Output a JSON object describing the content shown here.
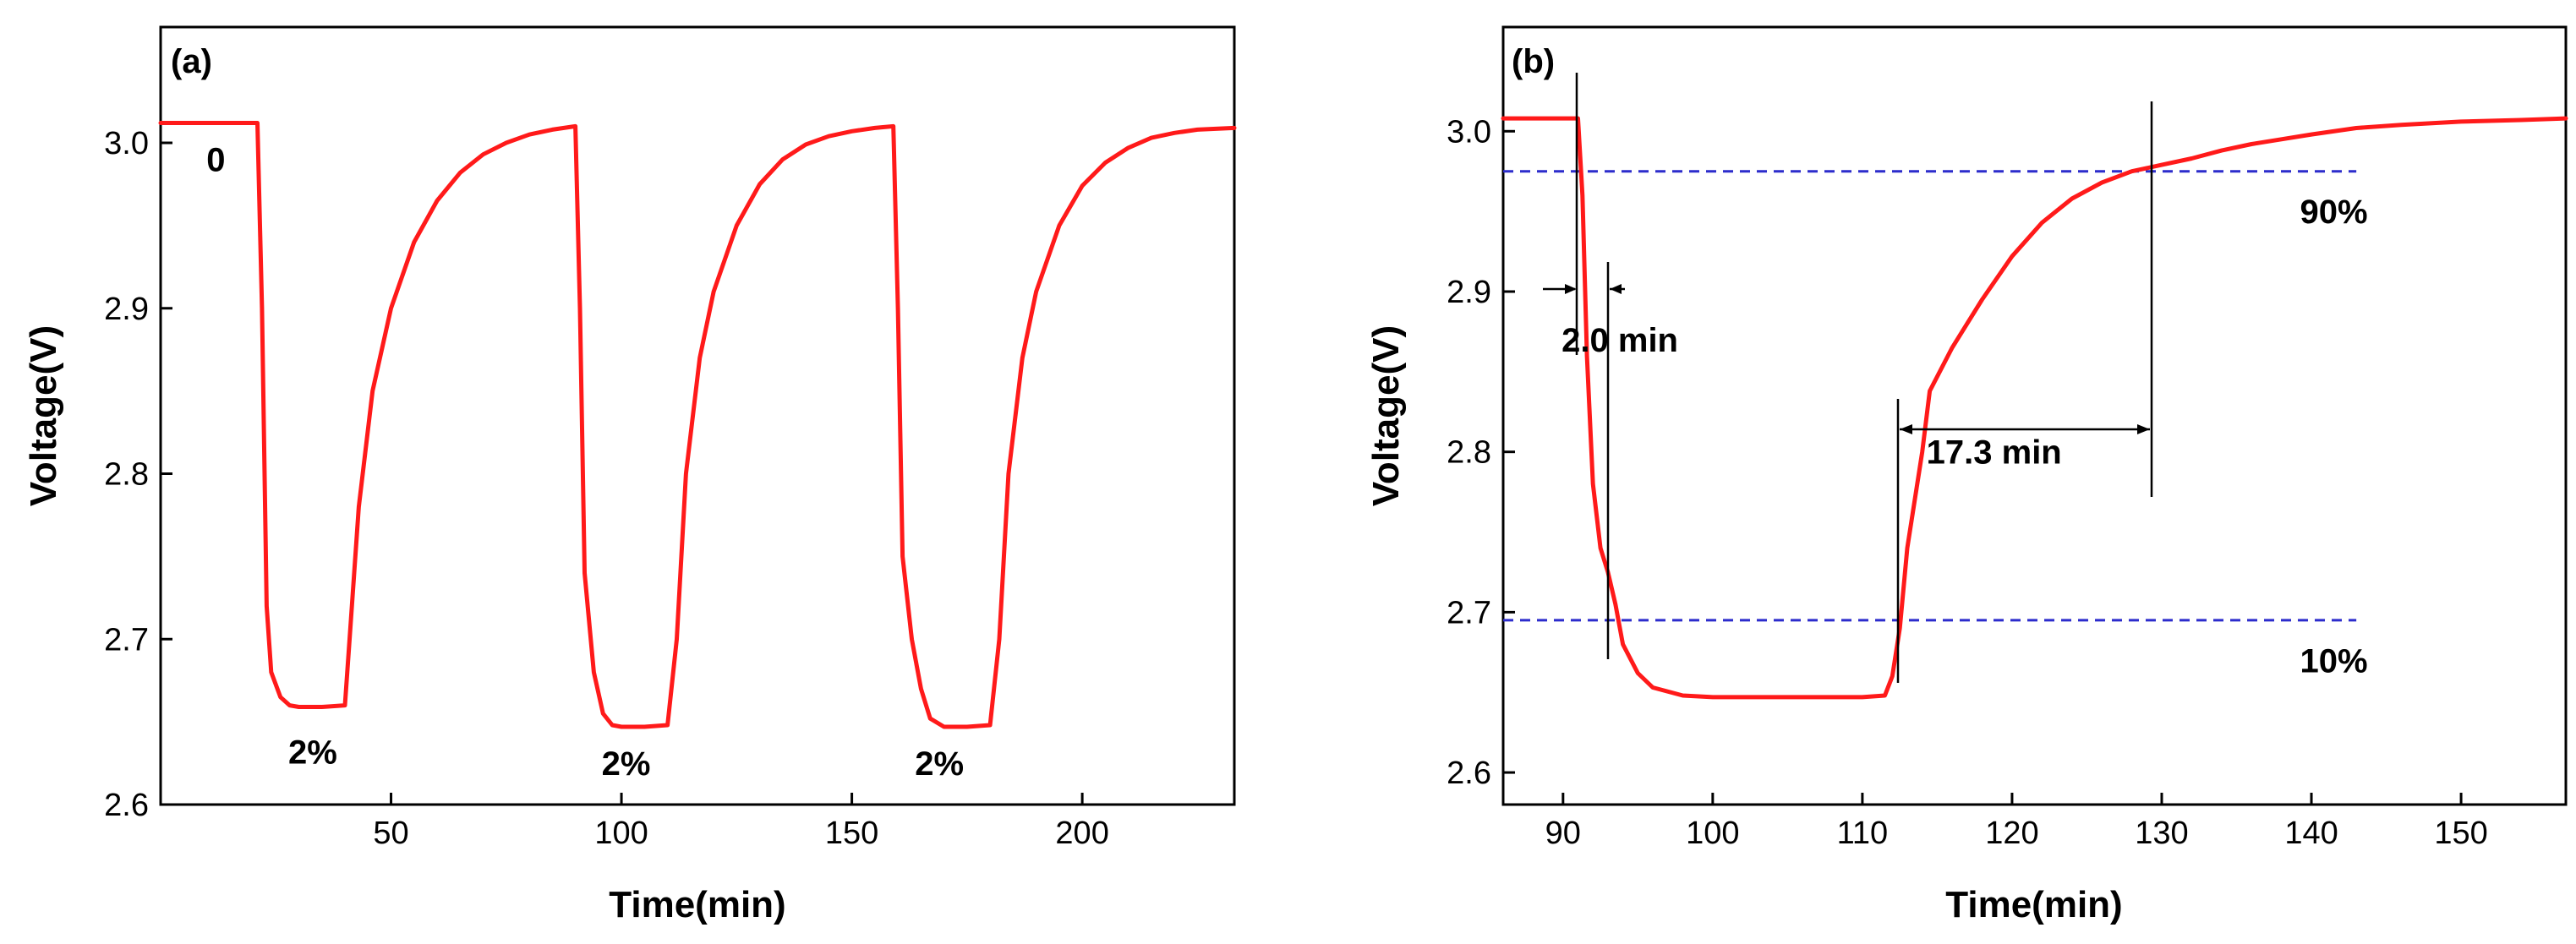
{
  "chart_data": [
    {
      "panel": "(a)",
      "type": "line",
      "title": "",
      "xlabel": "Time(min)",
      "ylabel": "Voltage(V)",
      "xlim": [
        0,
        233
      ],
      "ylim": [
        2.6,
        3.07
      ],
      "xticks": [
        50,
        100,
        150,
        200
      ],
      "yticks": [
        2.6,
        2.7,
        2.8,
        2.9,
        3.0
      ],
      "grid": false,
      "series": [
        {
          "color": "#ff1a1a",
          "x": [
            0,
            21,
            22,
            23,
            24,
            26,
            28,
            30,
            35,
            40,
            41,
            43,
            46,
            50,
            55,
            60,
            65,
            70,
            75,
            80,
            85,
            90,
            91,
            92,
            94,
            96,
            98,
            100,
            105,
            110,
            112,
            114,
            117,
            120,
            125,
            130,
            135,
            140,
            145,
            150,
            155,
            159,
            160,
            161,
            163,
            165,
            167,
            170,
            175,
            180,
            182,
            184,
            187,
            190,
            195,
            200,
            205,
            210,
            215,
            220,
            225,
            233
          ],
          "y": [
            3.012,
            3.012,
            2.9,
            2.72,
            2.68,
            2.665,
            2.66,
            2.659,
            2.659,
            2.66,
            2.7,
            2.78,
            2.85,
            2.9,
            2.94,
            2.965,
            2.982,
            2.993,
            3.0,
            3.005,
            3.008,
            3.01,
            2.9,
            2.74,
            2.68,
            2.655,
            2.648,
            2.647,
            2.647,
            2.648,
            2.7,
            2.8,
            2.87,
            2.91,
            2.95,
            2.975,
            2.99,
            2.999,
            3.004,
            3.007,
            3.009,
            3.01,
            2.9,
            2.75,
            2.7,
            2.67,
            2.652,
            2.647,
            2.647,
            2.648,
            2.7,
            2.8,
            2.87,
            2.91,
            2.95,
            2.974,
            2.988,
            2.997,
            3.003,
            3.006,
            3.008,
            3.009
          ]
        }
      ],
      "annotations": [
        {
          "text": "0",
          "x": 12,
          "y": 2.99
        },
        {
          "text": "2%",
          "x": 33,
          "y": 2.632
        },
        {
          "text": "2%",
          "x": 101,
          "y": 2.625
        },
        {
          "text": "2%",
          "x": 169,
          "y": 2.625
        }
      ]
    },
    {
      "panel": "(b)",
      "type": "line",
      "title": "",
      "xlabel": "Time(min)",
      "ylabel": "Voltage(V)",
      "xlim": [
        86,
        157
      ],
      "ylim": [
        2.58,
        3.065
      ],
      "xticks": [
        90,
        100,
        110,
        120,
        130,
        140,
        150
      ],
      "yticks": [
        2.6,
        2.7,
        2.8,
        2.9,
        3.0
      ],
      "grid": false,
      "series": [
        {
          "color": "#ff1a1a",
          "x": [
            86,
            91,
            91.3,
            91.6,
            92,
            92.5,
            93,
            93.5,
            94,
            95,
            96,
            98,
            100,
            105,
            110,
            111.5,
            112,
            112.5,
            113,
            114,
            114.5,
            116,
            118,
            120,
            122,
            124,
            126,
            128,
            130,
            132,
            134,
            136,
            138,
            140,
            143,
            146,
            150,
            154,
            157
          ],
          "y": [
            3.008,
            3.008,
            2.96,
            2.86,
            2.78,
            2.74,
            2.725,
            2.705,
            2.68,
            2.662,
            2.653,
            2.648,
            2.647,
            2.647,
            2.647,
            2.648,
            2.66,
            2.69,
            2.74,
            2.8,
            2.838,
            2.865,
            2.895,
            2.922,
            2.943,
            2.958,
            2.968,
            2.975,
            2.979,
            2.983,
            2.988,
            2.992,
            2.995,
            2.998,
            3.002,
            3.004,
            3.006,
            3.007,
            3.008
          ]
        }
      ],
      "reference_lines": [
        {
          "y": 2.975,
          "label": "90%",
          "x_start": 86,
          "x_end": 143
        },
        {
          "y": 2.695,
          "label": "10%",
          "x_start": 86,
          "x_end": 143
        }
      ],
      "annotations": [
        {
          "text": "2.0 min",
          "x": 93.8,
          "y": 2.87
        },
        {
          "text": "17.3 min",
          "x": 118.8,
          "y": 2.8
        },
        {
          "text": "90%",
          "x": 141.5,
          "y": 2.95
        },
        {
          "text": "10%",
          "x": 141.5,
          "y": 2.67
        }
      ]
    }
  ]
}
